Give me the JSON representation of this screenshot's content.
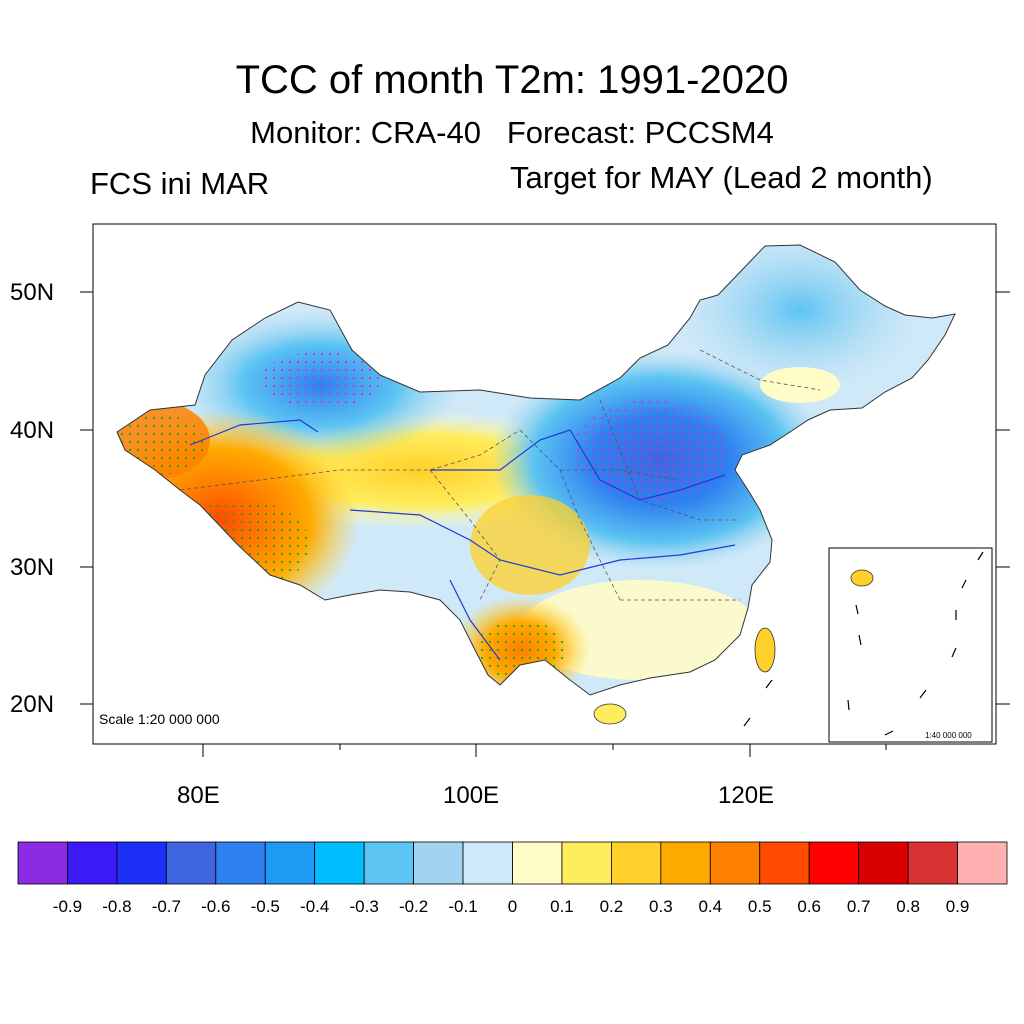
{
  "header": {
    "title": "TCC of month T2m: 1991-2020",
    "subtitle_left": "Monitor: CRA-40",
    "subtitle_right": "Forecast: PCCSM4",
    "init_label": "FCS ini MAR",
    "target_label": "Target for MAY (Lead 2 month)"
  },
  "map": {
    "scale_label": "Scale 1:20 000 000",
    "inset_scale_label": "1:40 000 000",
    "lat_labels": [
      "50N",
      "40N",
      "30N",
      "20N"
    ],
    "lon_labels": [
      "80E",
      "100E",
      "120E"
    ]
  },
  "colorbar": {
    "colors": [
      "#8b2be2",
      "#3a1af5",
      "#1c2ff5",
      "#3f66e0",
      "#2f80f0",
      "#1e9af5",
      "#00bfff",
      "#5cc4f2",
      "#a0d4f0",
      "#cfe9f8",
      "#fffcc8",
      "#ffed5e",
      "#ffd02a",
      "#ffaa00",
      "#ff8000",
      "#ff4a00",
      "#ff0000",
      "#d90000",
      "#d93232",
      "#ffb0b0"
    ],
    "labels": [
      "-0.9",
      "-0.8",
      "-0.7",
      "-0.6",
      "-0.5",
      "-0.4",
      "-0.3",
      "-0.2",
      "-0.1",
      "0",
      "0.1",
      "0.2",
      "0.3",
      "0.4",
      "0.5",
      "0.6",
      "0.7",
      "0.8",
      "0.9"
    ]
  }
}
